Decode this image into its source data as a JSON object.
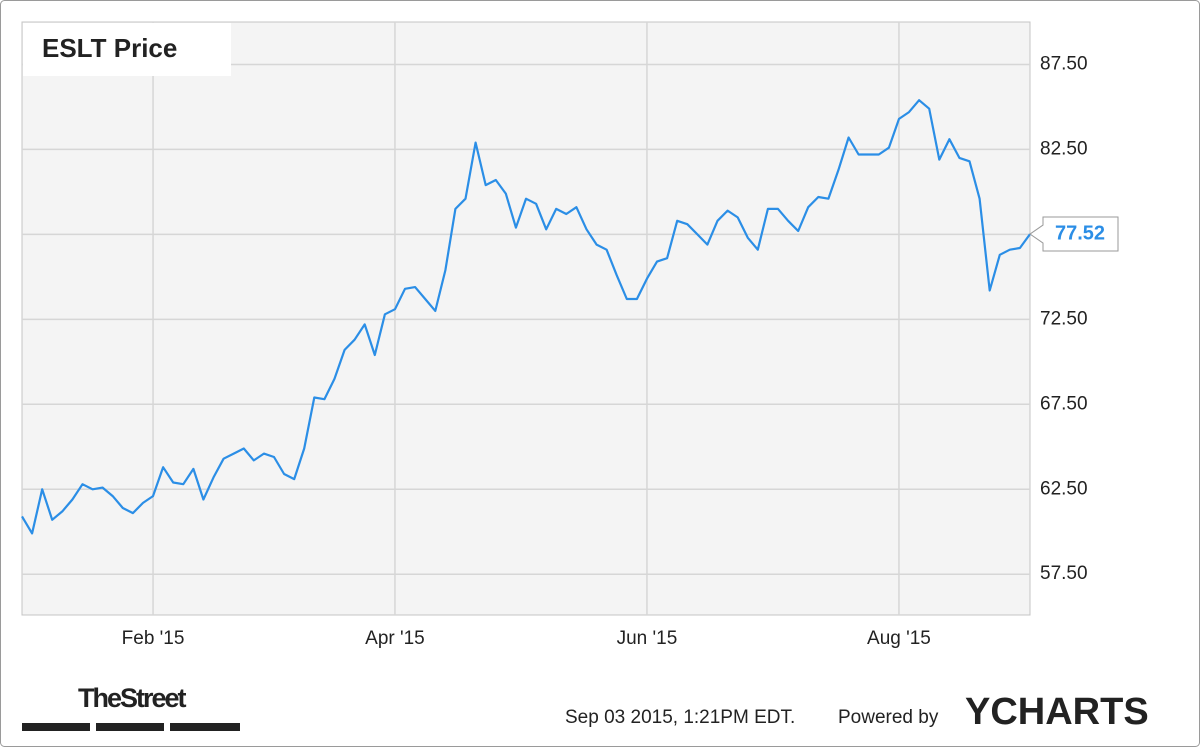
{
  "chart_data": {
    "type": "line",
    "title": "ESLT Price",
    "categories": [
      null,
      null,
      null,
      null,
      null,
      null,
      null,
      null,
      null,
      null,
      null,
      null,
      null,
      "Feb '15",
      null,
      null,
      null,
      null,
      null,
      null,
      null,
      null,
      null,
      null,
      null,
      null,
      null,
      null,
      null,
      null,
      null,
      null,
      null,
      null,
      null,
      null,
      null,
      "Apr '15",
      null,
      null,
      null,
      null,
      null,
      null,
      null,
      null,
      null,
      null,
      null,
      null,
      null,
      null,
      null,
      null,
      null,
      null,
      null,
      null,
      null,
      null,
      null,
      null,
      "Jun '15",
      null,
      null,
      null,
      null,
      null,
      null,
      null,
      null,
      null,
      null,
      null,
      null,
      null,
      null,
      null,
      null,
      null,
      null,
      null,
      null,
      null,
      null,
      null,
      null,
      "Aug '15",
      null,
      null,
      null,
      null,
      null,
      null,
      null,
      null,
      null,
      null,
      null,
      null,
      null
    ],
    "series": [
      {
        "name": "ESLT Price",
        "color": "#2b8ee6",
        "values": [
          60.9,
          59.9,
          62.5,
          60.7,
          61.2,
          61.9,
          62.8,
          62.5,
          62.6,
          62.1,
          61.4,
          61.1,
          61.7,
          62.1,
          63.8,
          62.9,
          62.8,
          63.7,
          61.9,
          63.2,
          64.3,
          64.6,
          64.9,
          64.2,
          64.6,
          64.4,
          63.4,
          63.1,
          64.9,
          67.9,
          67.8,
          69.0,
          70.7,
          71.3,
          72.2,
          70.4,
          72.8,
          73.1,
          74.3,
          74.4,
          73.7,
          73.0,
          75.4,
          79.0,
          79.6,
          82.9,
          80.4,
          80.7,
          79.9,
          77.9,
          79.6,
          79.3,
          77.8,
          79.0,
          78.7,
          79.1,
          77.8,
          76.9,
          76.6,
          75.1,
          73.7,
          73.7,
          74.9,
          75.9,
          76.1,
          78.3,
          78.1,
          77.5,
          76.9,
          78.3,
          78.9,
          78.5,
          77.3,
          76.6,
          79.0,
          79.0,
          78.3,
          77.7,
          79.1,
          79.7,
          79.6,
          81.3,
          83.2,
          82.2,
          82.2,
          82.2,
          82.6,
          84.3,
          84.7,
          85.4,
          84.9,
          81.9,
          83.1,
          82.0,
          81.8,
          79.6,
          74.2,
          76.3,
          76.6,
          76.7,
          77.52
        ]
      }
    ],
    "ylim": [
      55.1,
      90.0
    ],
    "yticks": [
      {
        "value": 57.5,
        "label": "57.50"
      },
      {
        "value": 62.5,
        "label": "62.50"
      },
      {
        "value": 67.5,
        "label": "67.50"
      },
      {
        "value": 72.5,
        "label": "72.50"
      },
      {
        "value": 77.5,
        "label": "77.50"
      },
      {
        "value": 82.5,
        "label": "82.50"
      },
      {
        "value": 87.5,
        "label": "87.50"
      }
    ],
    "grid": true
  },
  "footer": {
    "logo": "TheStreet",
    "timestamp": "Sep 03 2015, 1:21PM EDT.",
    "powered_by": "Powered by",
    "brand": "YCHARTS"
  }
}
